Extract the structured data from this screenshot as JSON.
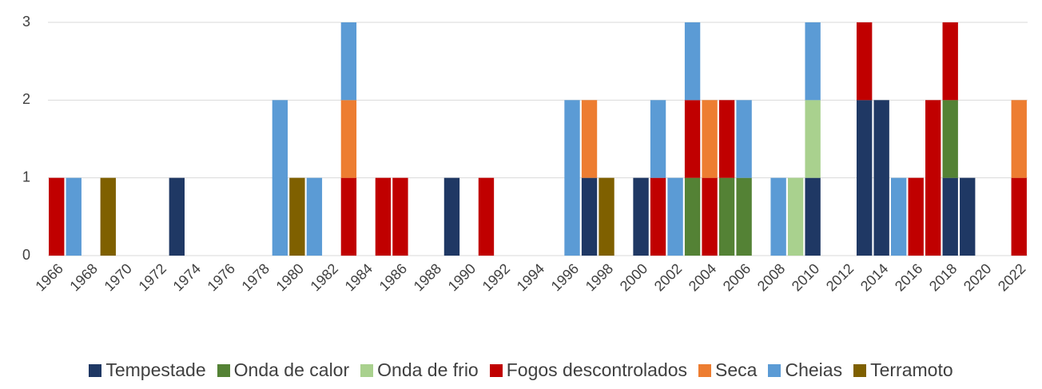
{
  "chart_data": {
    "type": "stacked_bar",
    "categories": [
      "1966",
      null,
      "1968",
      null,
      "1970",
      null,
      "1972",
      null,
      "1974",
      null,
      "1976",
      null,
      "1978",
      null,
      "1980",
      null,
      "1982",
      null,
      "1984",
      null,
      "1986",
      null,
      "1988",
      null,
      "1990",
      null,
      "1992",
      null,
      "1994",
      null,
      "1996",
      null,
      "1998",
      null,
      "2000",
      null,
      "2002",
      null,
      "2004",
      null,
      "2006",
      null,
      "2008",
      null,
      "2010",
      null,
      "2012",
      null,
      "2014",
      null,
      "2016",
      null,
      "2018",
      null,
      "2020",
      null,
      "2022"
    ],
    "series": [
      {
        "name": "Tempestade",
        "color": "#1f3864",
        "values": [
          0,
          0,
          0,
          0,
          0,
          0,
          0,
          1,
          0,
          0,
          0,
          0,
          0,
          0,
          0,
          0,
          0,
          0,
          0,
          0,
          0,
          0,
          0,
          1,
          0,
          0,
          0,
          0,
          0,
          0,
          0,
          1,
          0,
          0,
          1,
          0,
          0,
          0,
          0,
          0,
          0,
          0,
          0,
          0,
          1,
          0,
          0,
          2,
          2,
          0,
          0,
          0,
          1,
          1,
          0,
          0,
          0
        ]
      },
      {
        "name": "Onda de calor",
        "color": "#548235",
        "values": [
          0,
          0,
          0,
          0,
          0,
          0,
          0,
          0,
          0,
          0,
          0,
          0,
          0,
          0,
          0,
          0,
          0,
          0,
          0,
          0,
          0,
          0,
          0,
          0,
          0,
          0,
          0,
          0,
          0,
          0,
          0,
          0,
          0,
          0,
          0,
          0,
          0,
          1,
          0,
          1,
          1,
          0,
          0,
          0,
          0,
          0,
          0,
          0,
          0,
          0,
          0,
          0,
          1,
          0,
          0,
          0,
          0
        ]
      },
      {
        "name": "Onda de frio",
        "color": "#a9d18e",
        "values": [
          0,
          0,
          0,
          0,
          0,
          0,
          0,
          0,
          0,
          0,
          0,
          0,
          0,
          0,
          0,
          0,
          0,
          0,
          0,
          0,
          0,
          0,
          0,
          0,
          0,
          0,
          0,
          0,
          0,
          0,
          0,
          0,
          0,
          0,
          0,
          0,
          0,
          0,
          0,
          0,
          0,
          0,
          0,
          1,
          1,
          0,
          0,
          0,
          0,
          0,
          0,
          0,
          0,
          0,
          0,
          0,
          0
        ]
      },
      {
        "name": "Fogos descontrolados",
        "color": "#c00000",
        "values": [
          1,
          0,
          0,
          0,
          0,
          0,
          0,
          0,
          0,
          0,
          0,
          0,
          0,
          0,
          0,
          0,
          0,
          1,
          0,
          1,
          1,
          0,
          0,
          0,
          0,
          1,
          0,
          0,
          0,
          0,
          0,
          0,
          0,
          0,
          0,
          1,
          0,
          1,
          1,
          1,
          0,
          0,
          0,
          0,
          0,
          0,
          0,
          1,
          0,
          0,
          1,
          2,
          1,
          0,
          0,
          0,
          1
        ]
      },
      {
        "name": "Seca",
        "color": "#ed7d31",
        "values": [
          0,
          0,
          0,
          0,
          0,
          0,
          0,
          0,
          0,
          0,
          0,
          0,
          0,
          0,
          0,
          0,
          0,
          1,
          0,
          0,
          0,
          0,
          0,
          0,
          0,
          0,
          0,
          0,
          0,
          0,
          0,
          1,
          0,
          0,
          0,
          0,
          0,
          0,
          1,
          0,
          0,
          0,
          0,
          0,
          0,
          0,
          0,
          0,
          0,
          0,
          0,
          0,
          0,
          0,
          0,
          0,
          1
        ]
      },
      {
        "name": "Cheias",
        "color": "#5b9bd5",
        "values": [
          0,
          1,
          0,
          0,
          0,
          0,
          0,
          0,
          0,
          0,
          0,
          0,
          0,
          2,
          0,
          1,
          0,
          1,
          0,
          0,
          0,
          0,
          0,
          0,
          0,
          0,
          0,
          0,
          0,
          0,
          2,
          0,
          0,
          0,
          0,
          1,
          1,
          1,
          0,
          0,
          1,
          0,
          1,
          0,
          1,
          0,
          0,
          0,
          0,
          1,
          0,
          0,
          0,
          0,
          0,
          0,
          0
        ]
      },
      {
        "name": "Terramoto",
        "color": "#7f6000",
        "values": [
          0,
          0,
          0,
          1,
          0,
          0,
          0,
          0,
          0,
          0,
          0,
          0,
          0,
          0,
          1,
          0,
          0,
          0,
          0,
          0,
          0,
          0,
          0,
          0,
          0,
          0,
          0,
          0,
          0,
          0,
          0,
          0,
          1,
          0,
          0,
          0,
          0,
          0,
          0,
          0,
          0,
          0,
          0,
          0,
          0,
          0,
          0,
          0,
          0,
          0,
          0,
          0,
          0,
          0,
          0,
          0,
          0
        ]
      }
    ],
    "ylim": [
      0,
      3
    ],
    "yticks": [
      0,
      1,
      2,
      3
    ],
    "grid": true,
    "legend": "bottom"
  }
}
